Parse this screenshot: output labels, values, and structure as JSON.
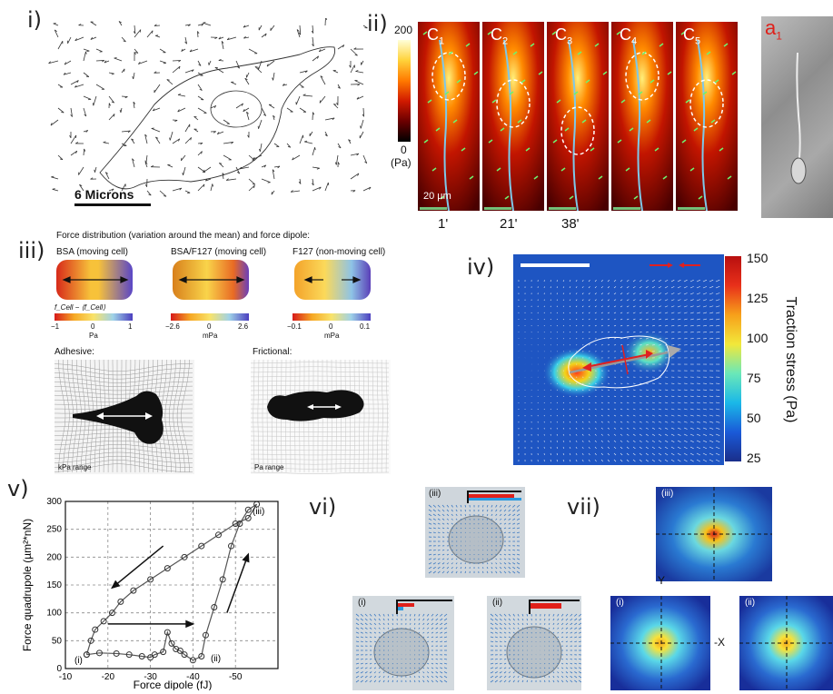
{
  "panels": {
    "p1": {
      "label": "i)",
      "scale_text": "6 Microns"
    },
    "p2": {
      "label": "ii)",
      "colorbar": {
        "max": "200",
        "min": "0",
        "unit": "(Pa)"
      },
      "frames": [
        {
          "label": "C",
          "sub": "1"
        },
        {
          "label": "C",
          "sub": "2"
        },
        {
          "label": "C",
          "sub": "3"
        },
        {
          "label": "C",
          "sub": "4"
        },
        {
          "label": "C",
          "sub": "5"
        }
      ],
      "scale_bar": "20 µm",
      "times": [
        "1'",
        "21'",
        "38'"
      ],
      "phase_label": {
        "label": "a",
        "sub": "1"
      }
    },
    "p3": {
      "label": "iii)",
      "title": "Force distribution (variation around the mean) and force dipole:",
      "cells": [
        {
          "name": "BSA (moving cell)",
          "min": "−1",
          "mid": "0",
          "max": "1",
          "unit": "Pa"
        },
        {
          "name": "BSA/F127 (moving cell)",
          "min": "−2.6",
          "mid": "0",
          "max": "2.6",
          "unit": "mPa"
        },
        {
          "name": "F127 (non-moving cell)",
          "min": "−0.1",
          "mid": "0",
          "max": "0.1",
          "unit": "mPa"
        }
      ],
      "formula": "f_Cell − ⟨f_Cell⟩",
      "adhesive_title": "Adhesive:",
      "frictional_title": "Frictional:",
      "adhesive_range": "kPa range",
      "frictional_range": "Pa range"
    },
    "p4": {
      "label": "iv)",
      "colorbar_label": "Traction stress (Pa)",
      "ticks": [
        "150",
        "125",
        "100",
        "75",
        "50",
        "25"
      ]
    },
    "p5": {
      "label": "v)",
      "ylabel": "Force quadrupole (µm²*nN)",
      "xlabel": "Force dipole (fJ)",
      "marker_i": "(i)",
      "marker_ii": "(ii)",
      "marker_iii": "(iii)"
    },
    "p6": {
      "label": "vi)",
      "sub_i": "(i)",
      "sub_ii": "(ii)",
      "sub_iii": "(iii)"
    },
    "p7": {
      "label": "vii)",
      "sub_i": "(i)",
      "sub_ii": "(ii)",
      "sub_iii": "(iii)",
      "axis_y": "Y",
      "axis_x": "-X"
    }
  },
  "chart_data": {
    "type": "line",
    "xlabel": "Force dipole (fJ)",
    "ylabel": "Force quadrupole (µm²*nN)",
    "xlim": [
      -10,
      -60
    ],
    "ylim": [
      0,
      300
    ],
    "xticks": [
      -10,
      -20,
      -30,
      -40,
      -50
    ],
    "yticks": [
      0,
      50,
      100,
      150,
      200,
      250,
      300
    ],
    "grid": true,
    "series": [
      {
        "values": [
          [
            -15,
            25
          ],
          [
            -18,
            28
          ],
          [
            -22,
            27
          ],
          [
            -25,
            25
          ],
          [
            -28,
            22
          ],
          [
            -30,
            20
          ],
          [
            -31,
            25
          ],
          [
            -33,
            30
          ],
          [
            -34,
            65
          ],
          [
            -35,
            45
          ],
          [
            -36,
            35
          ],
          [
            -37,
            32
          ],
          [
            -38,
            25
          ],
          [
            -40,
            15
          ],
          [
            -42,
            22
          ],
          [
            -43,
            60
          ],
          [
            -45,
            110
          ],
          [
            -47,
            160
          ],
          [
            -49,
            220
          ],
          [
            -51,
            260
          ],
          [
            -53,
            285
          ],
          [
            -55,
            295
          ],
          [
            -53,
            270
          ],
          [
            -50,
            260
          ],
          [
            -46,
            240
          ],
          [
            -42,
            220
          ],
          [
            -38,
            200
          ],
          [
            -34,
            180
          ],
          [
            -30,
            160
          ],
          [
            -26,
            140
          ],
          [
            -23,
            120
          ],
          [
            -21,
            100
          ],
          [
            -19,
            85
          ],
          [
            -17,
            70
          ],
          [
            -16,
            50
          ],
          [
            -15,
            25
          ]
        ]
      }
    ]
  }
}
